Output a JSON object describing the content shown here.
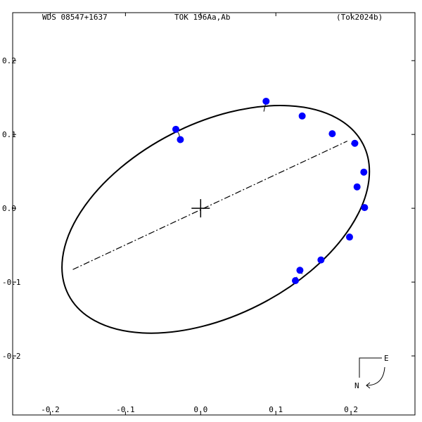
{
  "header": {
    "left": "WDS 08547+1637",
    "center": "TOK 196Aa,Ab",
    "right": "(Tok2024b)"
  },
  "compass": {
    "east": "E",
    "north": "N"
  },
  "colors": {
    "points": "#0000ff",
    "lines": "#000000",
    "background": "#ffffff"
  },
  "chart_data": {
    "type": "scatter",
    "x_ticks": [
      -0.2,
      -0.1,
      0.0,
      0.1,
      0.2
    ],
    "x_tick_labels": [
      "-0.2",
      "-0.1",
      "0.0",
      "0.1",
      "0.2"
    ],
    "y_ticks": [
      0.2,
      0.1,
      0.0,
      -0.1,
      -0.2
    ],
    "y_tick_labels": [
      "0.2",
      "0.1",
      "0.0",
      "-0.1",
      "-0.2"
    ],
    "xlim": [
      -0.25,
      0.285
    ],
    "ylim": [
      -0.28,
      0.265
    ],
    "primary": [
      0,
      0
    ],
    "orbit_center": [
      0.02,
      -0.015
    ],
    "orbit_semi_axes": [
      0.22,
      0.13
    ],
    "orbit_rotation_deg": 27,
    "line_of_nodes": [
      [
        -0.17,
        -0.083
      ],
      [
        0.195,
        0.091
      ]
    ],
    "observations": [
      {
        "x": -0.033,
        "y": 0.107,
        "ox": -0.029,
        "oy": 0.101
      },
      {
        "x": -0.027,
        "y": 0.093,
        "ox": -0.029,
        "oy": 0.101
      },
      {
        "x": 0.087,
        "y": 0.145,
        "ox": 0.084,
        "oy": 0.131
      },
      {
        "x": 0.135,
        "y": 0.125,
        "ox": 0.135,
        "oy": 0.124
      },
      {
        "x": 0.175,
        "y": 0.101,
        "ox": 0.178,
        "oy": 0.103
      },
      {
        "x": 0.205,
        "y": 0.088,
        "ox": 0.2,
        "oy": 0.087
      },
      {
        "x": 0.217,
        "y": 0.049,
        "ox": 0.213,
        "oy": 0.05
      },
      {
        "x": 0.208,
        "y": 0.029,
        "ox": 0.209,
        "oy": 0.029
      },
      {
        "x": 0.218,
        "y": 0.001,
        "ox": 0.214,
        "oy": 0.001
      },
      {
        "x": 0.198,
        "y": -0.039,
        "ox": 0.201,
        "oy": -0.038
      },
      {
        "x": 0.16,
        "y": -0.07,
        "ox": 0.16,
        "oy": -0.069
      },
      {
        "x": 0.132,
        "y": -0.084,
        "ox": 0.135,
        "oy": -0.089
      },
      {
        "x": 0.126,
        "y": -0.098,
        "ox": 0.128,
        "oy": -0.093
      }
    ]
  }
}
